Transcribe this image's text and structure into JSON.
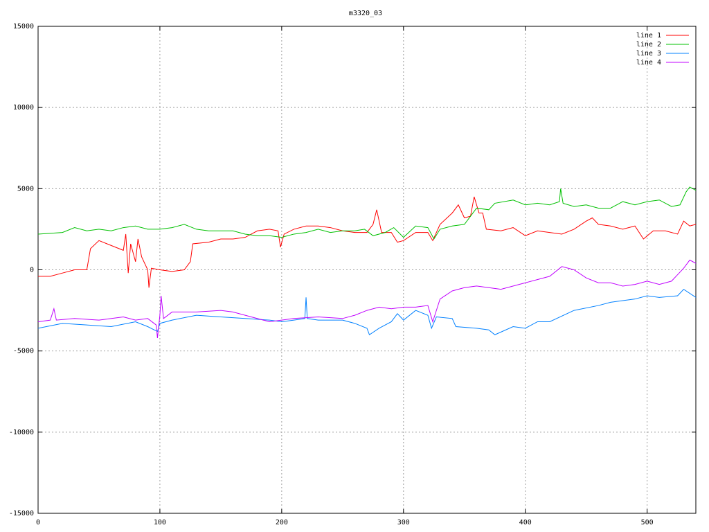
{
  "chart_data": {
    "type": "line",
    "title": "m3320_03",
    "xlim": [
      0,
      540
    ],
    "ylim": [
      -15000,
      15000
    ],
    "xticks": [
      0,
      100,
      200,
      300,
      400,
      500
    ],
    "yticks": [
      -15000,
      -10000,
      -5000,
      0,
      5000,
      10000,
      15000
    ],
    "grid": true,
    "legend": "top-right",
    "series": [
      {
        "name": "line 1",
        "color": "#ff0000",
        "x": [
          0,
          10,
          20,
          30,
          40,
          43,
          50,
          60,
          70,
          72,
          74,
          76,
          80,
          82,
          85,
          90,
          91,
          93,
          100,
          110,
          120,
          125,
          127,
          140,
          150,
          160,
          170,
          180,
          190,
          197,
          199,
          202,
          210,
          220,
          230,
          240,
          250,
          260,
          270,
          275,
          278,
          282,
          290,
          295,
          300,
          310,
          320,
          324,
          330,
          340,
          345,
          350,
          355,
          358,
          362,
          365,
          368,
          380,
          390,
          400,
          410,
          420,
          430,
          440,
          450,
          455,
          460,
          470,
          480,
          490,
          497,
          505,
          515,
          525,
          530,
          535,
          540
        ],
        "values": [
          -400,
          -400,
          -200,
          0,
          0,
          1300,
          1800,
          1500,
          1200,
          2200,
          -200,
          1600,
          500,
          1900,
          800,
          0,
          -1100,
          100,
          0,
          -100,
          0,
          500,
          1600,
          1700,
          1900,
          1900,
          2000,
          2400,
          2500,
          2400,
          1400,
          2200,
          2500,
          2700,
          2700,
          2600,
          2400,
          2300,
          2300,
          2800,
          3700,
          2300,
          2300,
          1700,
          1800,
          2300,
          2300,
          1800,
          2800,
          3500,
          4000,
          3200,
          3300,
          4500,
          3500,
          3500,
          2500,
          2400,
          2600,
          2100,
          2400,
          2300,
          2200,
          2500,
          3000,
          3200,
          2800,
          2700,
          2500,
          2700,
          1900,
          2400,
          2400,
          2200,
          3000,
          2700,
          2800
        ]
      },
      {
        "name": "line 2",
        "color": "#00c000",
        "x": [
          0,
          20,
          30,
          40,
          50,
          60,
          70,
          80,
          90,
          100,
          110,
          120,
          130,
          140,
          150,
          160,
          170,
          180,
          190,
          200,
          210,
          220,
          230,
          240,
          250,
          260,
          268,
          275,
          285,
          292,
          300,
          310,
          320,
          325,
          330,
          340,
          350,
          360,
          370,
          375,
          390,
          400,
          410,
          420,
          428,
          429,
          431,
          440,
          450,
          460,
          470,
          480,
          490,
          500,
          510,
          520,
          527,
          532,
          535,
          540
        ],
        "values": [
          2200,
          2300,
          2600,
          2400,
          2500,
          2400,
          2600,
          2700,
          2500,
          2500,
          2600,
          2800,
          2500,
          2400,
          2400,
          2400,
          2200,
          2100,
          2100,
          2000,
          2200,
          2300,
          2500,
          2300,
          2400,
          2400,
          2500,
          2100,
          2300,
          2600,
          2000,
          2700,
          2600,
          1900,
          2500,
          2700,
          2800,
          3800,
          3700,
          4100,
          4300,
          4000,
          4100,
          4000,
          4200,
          5000,
          4100,
          3900,
          4000,
          3800,
          3800,
          4200,
          4000,
          4200,
          4300,
          3900,
          4000,
          4800,
          5100,
          4900
        ]
      },
      {
        "name": "line 3",
        "color": "#0080ff",
        "x": [
          0,
          20,
          40,
          60,
          80,
          90,
          98,
          100,
          110,
          130,
          150,
          170,
          190,
          200,
          210,
          219,
          220,
          221,
          230,
          250,
          260,
          270,
          272,
          280,
          290,
          295,
          300,
          310,
          320,
          323,
          327,
          340,
          343,
          360,
          370,
          375,
          390,
          400,
          410,
          420,
          440,
          460,
          470,
          490,
          500,
          510,
          525,
          530,
          540
        ],
        "values": [
          -3600,
          -3300,
          -3400,
          -3500,
          -3200,
          -3500,
          -3800,
          -3300,
          -3100,
          -2800,
          -2900,
          -3000,
          -3100,
          -3200,
          -3100,
          -3000,
          -1700,
          -3000,
          -3100,
          -3100,
          -3300,
          -3600,
          -4000,
          -3600,
          -3200,
          -2700,
          -3100,
          -2500,
          -2800,
          -3600,
          -2900,
          -3000,
          -3500,
          -3600,
          -3700,
          -4000,
          -3500,
          -3600,
          -3200,
          -3200,
          -2500,
          -2200,
          -2000,
          -1800,
          -1600,
          -1700,
          -1600,
          -1200,
          -1700
        ]
      },
      {
        "name": "line 4",
        "color": "#c000ff",
        "x": [
          0,
          10,
          13,
          15,
          30,
          50,
          70,
          80,
          90,
          97,
          98,
          100,
          101,
          103,
          110,
          130,
          150,
          160,
          170,
          190,
          210,
          230,
          250,
          260,
          270,
          280,
          290,
          300,
          310,
          320,
          324,
          330,
          340,
          350,
          360,
          370,
          380,
          400,
          420,
          430,
          440,
          450,
          460,
          470,
          480,
          490,
          500,
          510,
          520,
          525,
          530,
          535,
          540
        ],
        "values": [
          -3200,
          -3100,
          -2400,
          -3100,
          -3000,
          -3100,
          -2900,
          -3100,
          -3000,
          -3400,
          -4200,
          -2800,
          -1600,
          -3000,
          -2600,
          -2600,
          -2500,
          -2600,
          -2800,
          -3200,
          -3000,
          -2900,
          -3000,
          -2800,
          -2500,
          -2300,
          -2400,
          -2300,
          -2300,
          -2200,
          -3200,
          -1800,
          -1300,
          -1100,
          -1000,
          -1100,
          -1200,
          -800,
          -400,
          200,
          0,
          -500,
          -800,
          -800,
          -1000,
          -900,
          -700,
          -900,
          -700,
          -300,
          100,
          600,
          400
        ]
      }
    ]
  }
}
